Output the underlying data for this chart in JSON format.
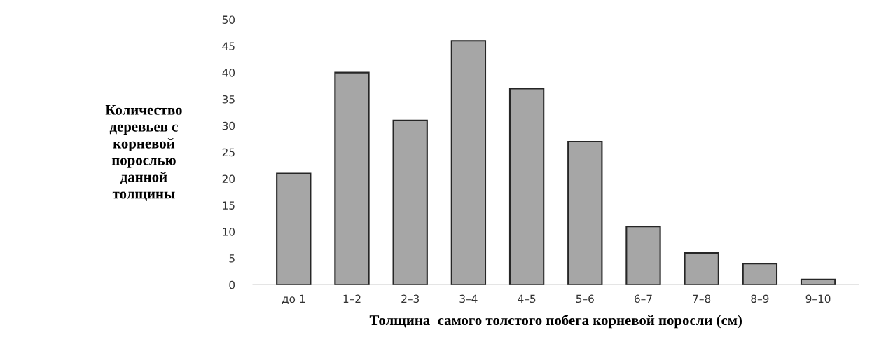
{
  "chart_data": {
    "type": "bar",
    "categories": [
      "до 1",
      "1–2",
      "2–3",
      "3–4",
      "4–5",
      "5–6",
      "6–7",
      "7–8",
      "8–9",
      "9–10"
    ],
    "values": [
      21,
      40,
      31,
      46,
      37,
      27,
      11,
      6,
      4,
      1
    ],
    "color": "#a6a6a6",
    "xlabel": "Толщина  самого толстого побега корневой поросли (см)",
    "ylabel": "Количество\nдеревьев с\nкорневой\nпорослью\nданной\nтолщины",
    "ylim": [
      0,
      50
    ],
    "yticks": [
      0,
      5,
      10,
      15,
      20,
      25,
      30,
      35,
      40,
      45,
      50
    ],
    "grid": false,
    "legend": false
  }
}
